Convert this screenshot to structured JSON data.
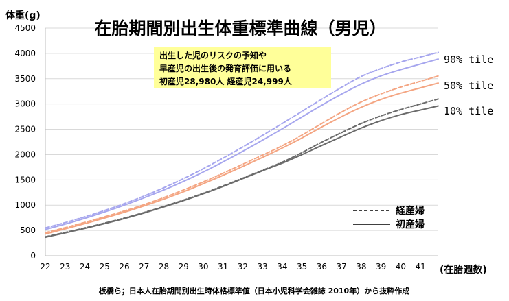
{
  "chart_data": {
    "type": "line",
    "title": "在胎期間別出生体重標準曲線（男児）",
    "ylabel": "体重(g)",
    "xlabel": "(在胎週数)",
    "ylim": [
      0,
      4500
    ],
    "y_ticks": [
      0,
      500,
      1000,
      1500,
      2000,
      2500,
      3000,
      3500,
      4000,
      4500
    ],
    "x": [
      22,
      23,
      24,
      25,
      26,
      27,
      28,
      29,
      30,
      31,
      32,
      33,
      34,
      35,
      36,
      37,
      38,
      39,
      40,
      41
    ],
    "x_range": [
      22,
      41.9
    ],
    "grid": true,
    "note": {
      "lines": [
        "出生した児のリスクの予知や",
        "早産児の出生後の発育評価に用いる",
        "初産児28,980人 経産児24,999人"
      ],
      "fill": "#ffff99"
    },
    "percentile_labels": [
      "90% tile",
      "50% tile",
      "10% tile"
    ],
    "legend": {
      "position": "bottom-right",
      "items": [
        {
          "label": "経産婦",
          "style": "dashed"
        },
        {
          "label": "初産婦",
          "style": "solid"
        }
      ]
    },
    "source": "板橋ら；日本人在胎期間別出生時体格標準値（日本小児科学会雑誌 2010年）から抜粋作成",
    "colors": {
      "p90": "#a6a6ee",
      "p50": "#f4a582",
      "p10": "#6b6b6b"
    },
    "series": [
      {
        "percentile": "90",
        "parity": "経産婦",
        "style": "dashed",
        "color": "#a6a6ee",
        "values": [
          550,
          655,
          770,
          895,
          1030,
          1180,
          1345,
          1525,
          1720,
          1930,
          2150,
          2380,
          2615,
          2855,
          3095,
          3330,
          3545,
          3700,
          3830,
          3930
        ]
      },
      {
        "percentile": "90",
        "parity": "初産婦",
        "style": "solid",
        "color": "#a6a6ee",
        "values": [
          520,
          625,
          740,
          865,
          1000,
          1145,
          1300,
          1470,
          1655,
          1855,
          2065,
          2285,
          2510,
          2745,
          2975,
          3195,
          3395,
          3555,
          3680,
          3790
        ]
      },
      {
        "percentile": "50",
        "parity": "経産婦",
        "style": "dashed",
        "color": "#f4a582",
        "values": [
          455,
          555,
          660,
          770,
          885,
          1010,
          1150,
          1300,
          1460,
          1630,
          1810,
          1990,
          2175,
          2385,
          2615,
          2840,
          3040,
          3200,
          3335,
          3450
        ]
      },
      {
        "percentile": "50",
        "parity": "初産婦",
        "style": "solid",
        "color": "#f4a582",
        "values": [
          430,
          530,
          635,
          745,
          860,
          985,
          1120,
          1265,
          1425,
          1590,
          1765,
          1945,
          2130,
          2330,
          2545,
          2750,
          2935,
          3090,
          3215,
          3320
        ]
      },
      {
        "percentile": "10",
        "parity": "経産婦",
        "style": "dashed",
        "color": "#6b6b6b",
        "values": [
          375,
          460,
          550,
          645,
          745,
          855,
          975,
          1100,
          1235,
          1380,
          1535,
          1690,
          1850,
          2040,
          2245,
          2435,
          2615,
          2765,
          2890,
          3000
        ]
      },
      {
        "percentile": "10",
        "parity": "初産婦",
        "style": "solid",
        "color": "#6b6b6b",
        "values": [
          365,
          450,
          540,
          635,
          735,
          845,
          965,
          1090,
          1225,
          1370,
          1525,
          1680,
          1830,
          2000,
          2180,
          2355,
          2525,
          2670,
          2790,
          2880
        ]
      }
    ]
  }
}
